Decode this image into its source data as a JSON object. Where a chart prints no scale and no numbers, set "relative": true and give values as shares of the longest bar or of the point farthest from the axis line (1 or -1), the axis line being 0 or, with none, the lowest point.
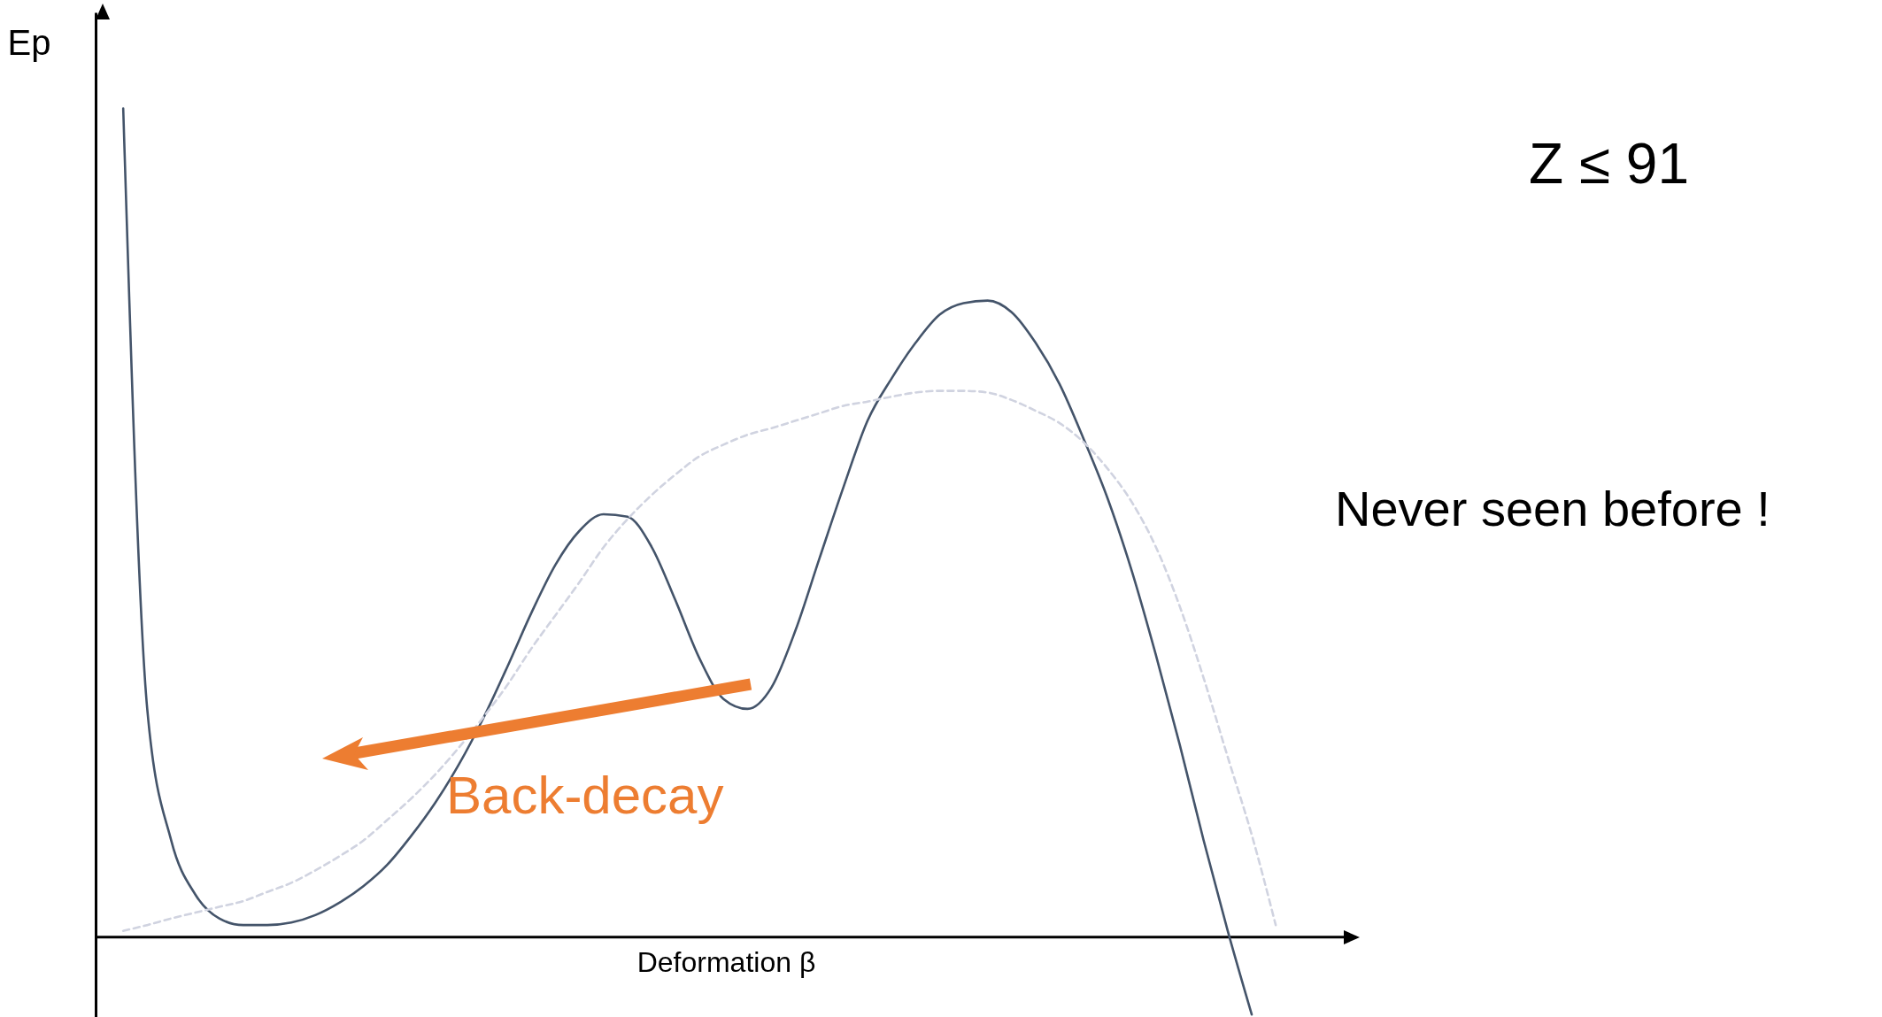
{
  "chart_data": {
    "type": "line",
    "relative": true,
    "xlabel": "Deformation β",
    "ylabel": "Ep",
    "marker": "none",
    "grid": false,
    "categories": [
      null,
      null,
      null,
      null,
      null,
      null,
      null,
      null,
      null,
      null,
      null,
      null,
      null,
      null,
      null,
      null,
      null,
      null,
      null,
      null,
      null,
      null,
      null,
      null,
      null,
      null,
      null,
      null,
      null,
      null,
      null,
      null,
      null,
      null,
      null,
      null,
      null,
      null,
      null,
      null,
      null,
      null,
      null,
      null,
      null,
      null,
      null,
      null,
      null
    ],
    "series": [
      {
        "color": "#44546a",
        "line_style": "solid",
        "values": [
          1.0,
          0.275,
          0.116,
          0.051,
          0.022,
          0.014,
          0.014,
          0.017,
          0.026,
          0.041,
          0.061,
          0.087,
          0.122,
          0.162,
          0.209,
          0.264,
          0.326,
          0.391,
          0.449,
          0.49,
          0.51,
          0.507,
          0.471,
          0.406,
          0.336,
          0.287,
          0.275,
          0.301,
          0.37,
          0.457,
          0.543,
          0.623,
          0.674,
          0.717,
          0.751,
          0.765,
          0.768,
          0.754,
          0.717,
          0.667,
          0.601,
          0.529,
          0.442,
          0.341,
          0.232,
          0.116,
          0.007,
          -0.094,
          null
        ]
      },
      {
        "color": "#d0d3e0",
        "line_style": "dashed",
        "values": [
          0.007,
          0.014,
          0.022,
          0.029,
          0.036,
          0.043,
          0.054,
          0.065,
          0.08,
          0.097,
          0.116,
          0.141,
          0.167,
          0.196,
          0.229,
          0.265,
          0.304,
          0.348,
          0.388,
          0.428,
          0.47,
          0.504,
          0.533,
          0.558,
          0.58,
          0.594,
          0.606,
          0.614,
          0.623,
          0.632,
          0.641,
          0.646,
          0.652,
          0.657,
          0.659,
          0.659,
          0.657,
          0.648,
          0.635,
          0.62,
          0.597,
          0.565,
          0.525,
          0.471,
          0.399,
          0.312,
          0.217,
          0.123,
          0.014
        ]
      }
    ],
    "annotations": [
      "Z ≤ 91",
      "Never seen before !",
      {
        "text": "Back-decay"
      }
    ]
  }
}
